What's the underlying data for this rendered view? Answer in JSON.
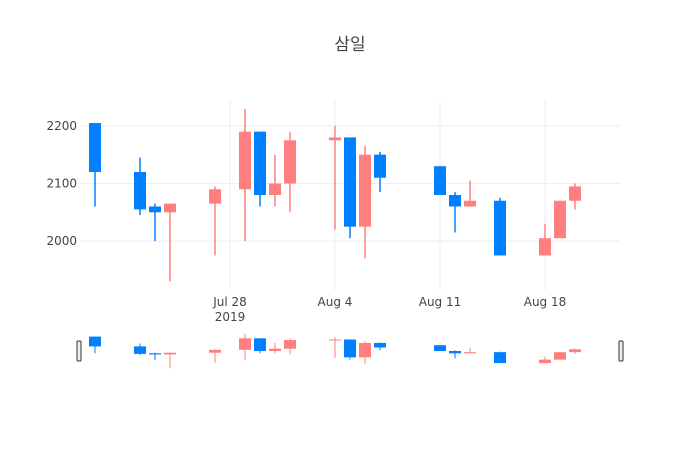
{
  "chart_data": {
    "type": "candlestick",
    "title": "삼일",
    "x_tick_labels": [
      "Jul 28",
      "Aug 4",
      "Aug 11",
      "Aug 18"
    ],
    "x_tick_dates": [
      "2019-07-28",
      "2019-08-04",
      "2019-08-11",
      "2019-08-18"
    ],
    "x_year_label": "2019",
    "y_ticks": [
      2000,
      2100,
      2200
    ],
    "ylim": [
      1915,
      2245
    ],
    "xlim": [
      "2019-07-18",
      "2019-08-23"
    ],
    "grid": true,
    "increasing_color": "#ff7f7f",
    "decreasing_color": "#0080ff",
    "range_slider": true,
    "candles": [
      {
        "date": "2019-07-19",
        "open": 2205,
        "high": 2205,
        "low": 2060,
        "close": 2120
      },
      {
        "date": "2019-07-22",
        "open": 2120,
        "high": 2145,
        "low": 2045,
        "close": 2055
      },
      {
        "date": "2019-07-23",
        "open": 2060,
        "high": 2065,
        "low": 2000,
        "close": 2050
      },
      {
        "date": "2019-07-24",
        "open": 2050,
        "high": 2065,
        "low": 1930,
        "close": 2065
      },
      {
        "date": "2019-07-27",
        "open": 2065,
        "high": 2095,
        "low": 1975,
        "close": 2090
      },
      {
        "date": "2019-07-29",
        "open": 2090,
        "high": 2230,
        "low": 2000,
        "close": 2190
      },
      {
        "date": "2019-07-30",
        "open": 2190,
        "high": 2190,
        "low": 2060,
        "close": 2080
      },
      {
        "date": "2019-07-31",
        "open": 2080,
        "high": 2150,
        "low": 2060,
        "close": 2100
      },
      {
        "date": "2019-08-01",
        "open": 2100,
        "high": 2190,
        "low": 2050,
        "close": 2175
      },
      {
        "date": "2019-08-04",
        "open": 2175,
        "high": 2200,
        "low": 2020,
        "close": 2180
      },
      {
        "date": "2019-08-05",
        "open": 2180,
        "high": 2180,
        "low": 2005,
        "close": 2025
      },
      {
        "date": "2019-08-06",
        "open": 2025,
        "high": 2165,
        "low": 1970,
        "close": 2150
      },
      {
        "date": "2019-08-07",
        "open": 2150,
        "high": 2155,
        "low": 2085,
        "close": 2110
      },
      {
        "date": "2019-08-11",
        "open": 2130,
        "high": 2130,
        "low": 2080,
        "close": 2080
      },
      {
        "date": "2019-08-12",
        "open": 2080,
        "high": 2085,
        "low": 2015,
        "close": 2060
      },
      {
        "date": "2019-08-13",
        "open": 2060,
        "high": 2105,
        "low": 2060,
        "close": 2070
      },
      {
        "date": "2019-08-15",
        "open": 2070,
        "high": 2075,
        "low": 1975,
        "close": 1975
      },
      {
        "date": "2019-08-18",
        "open": 1975,
        "high": 2030,
        "low": 1975,
        "close": 2005
      },
      {
        "date": "2019-08-19",
        "open": 2005,
        "high": 2070,
        "low": 2005,
        "close": 2070
      },
      {
        "date": "2019-08-20",
        "open": 2070,
        "high": 2100,
        "low": 2055,
        "close": 2095
      }
    ]
  }
}
